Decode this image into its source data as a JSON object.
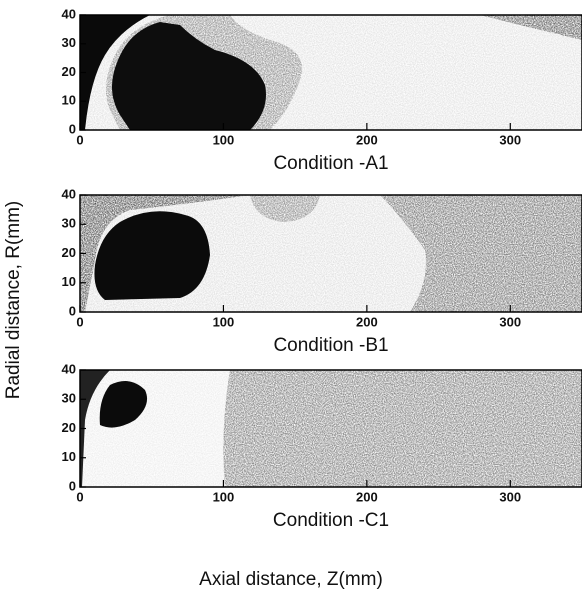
{
  "figure": {
    "xlabel": "Axial distance, Z(mm)",
    "ylabel": "Radial distance, R(mm)"
  },
  "chart_data": [
    {
      "type": "image",
      "title": "Condition -A1",
      "xlim": [
        0,
        350
      ],
      "ylim": [
        0,
        40
      ],
      "xticks": [
        0,
        100,
        200,
        300
      ],
      "yticks": [
        0,
        10,
        20,
        30,
        40
      ]
    },
    {
      "type": "image",
      "title": "Condition -B1",
      "xlim": [
        0,
        350
      ],
      "ylim": [
        0,
        40
      ],
      "xticks": [
        0,
        100,
        200,
        300
      ],
      "yticks": [
        0,
        10,
        20,
        30,
        40
      ]
    },
    {
      "type": "image",
      "title": "Condition -C1",
      "xlim": [
        0,
        350
      ],
      "ylim": [
        0,
        40
      ],
      "xticks": [
        0,
        100,
        200,
        300
      ],
      "yticks": [
        0,
        10,
        20,
        30,
        40
      ]
    }
  ]
}
